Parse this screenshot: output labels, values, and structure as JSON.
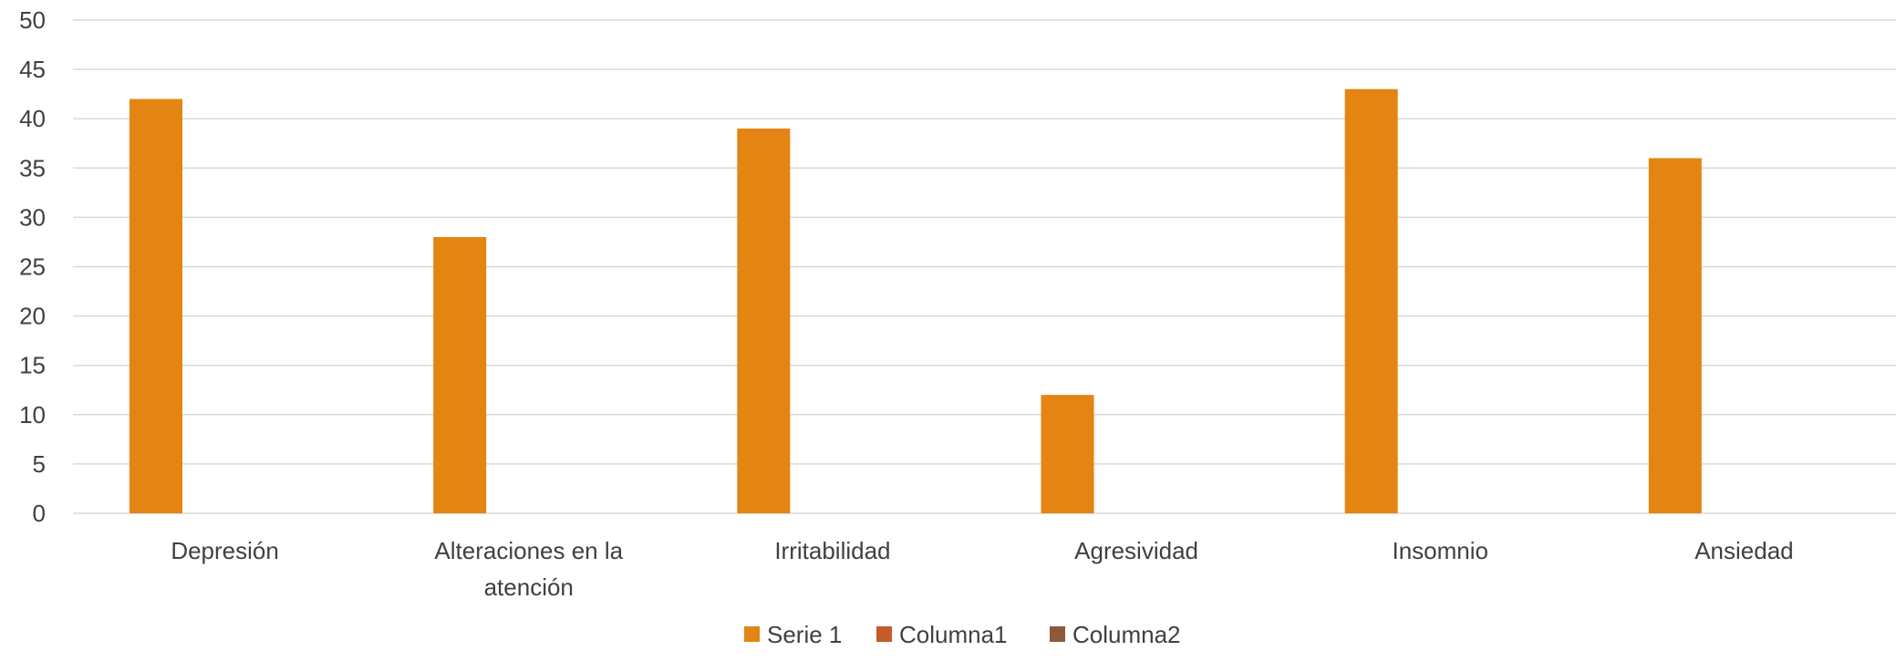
{
  "chart_data": {
    "type": "bar",
    "categories": [
      "Depresión",
      "Alteraciones en la atención",
      "Irritabilidad",
      "Agresividad",
      "Insomnio",
      "Ansiedad"
    ],
    "category_lines": [
      [
        "Depresión"
      ],
      [
        "Alteraciones en la",
        "atención"
      ],
      [
        "Irritabilidad"
      ],
      [
        "Agresividad"
      ],
      [
        "Insomnio"
      ],
      [
        "Ansiedad"
      ]
    ],
    "series": [
      {
        "name": "Serie 1",
        "values": [
          42,
          28,
          39,
          12,
          43,
          36
        ],
        "color": "#E48413"
      },
      {
        "name": "Columna1",
        "values": [
          null,
          null,
          null,
          null,
          null,
          null
        ],
        "color": "#C55A2B"
      },
      {
        "name": "Columna2",
        "values": [
          null,
          null,
          null,
          null,
          null,
          null
        ],
        "color": "#8B5A3C"
      }
    ],
    "title": "",
    "xlabel": "",
    "ylabel": "",
    "ylim": [
      0,
      50
    ],
    "yticks": [
      0,
      5,
      10,
      15,
      20,
      25,
      30,
      35,
      40,
      45,
      50
    ],
    "grid": true,
    "legend_position": "bottom"
  },
  "colors": {
    "grid": "#D9D9D9",
    "text": "#404040"
  }
}
